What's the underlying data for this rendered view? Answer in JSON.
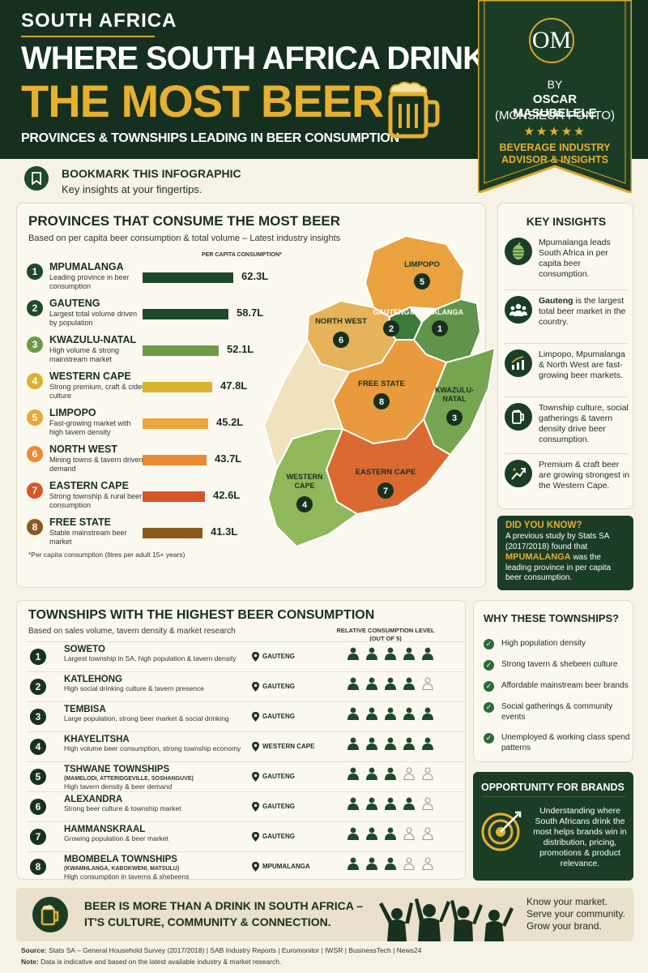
{
  "header": {
    "region": "SOUTH AFRICA",
    "title_line1": "WHERE SOUTH AFRICA DRINKS",
    "title_line2": "THE MOST BEER",
    "subtitle": "PROVINCES & TOWNSHIPS LEADING IN BEER CONSUMPTION",
    "badge": {
      "logo": "OM",
      "by": "BY",
      "author": "OSCAR MASUBELELE",
      "alias": "(MONSIEUR PONTO)",
      "stars": "★★★★★",
      "role_line1": "BEVERAGE INDUSTRY",
      "role_line2": "ADVISOR & INSIGHTS"
    }
  },
  "bookmark": {
    "title": "BOOKMARK THIS INFOGRAPHIC",
    "subtitle": "Key insights at your fingertips."
  },
  "provinces": {
    "title": "PROVINCES THAT CONSUME THE MOST BEER",
    "subtitle": "Based on per capita beer consumption & total volume – Latest industry insights",
    "column_label": "PER CAPITA CONSUMPTION*",
    "footnote": "*Per capita consumption (litres per adult 15+ years)",
    "items": [
      {
        "rank": "1",
        "name": "MPUMALANGA",
        "desc": "Leading province in beer consumption",
        "value": 62.3,
        "label": "62.3L",
        "color": "#1e4a2a"
      },
      {
        "rank": "2",
        "name": "GAUTENG",
        "desc": "Largest total volume driven by population",
        "value": 58.7,
        "label": "58.7L",
        "color": "#1e4a2a"
      },
      {
        "rank": "3",
        "name": "KWAZULU-NATAL",
        "desc": "High volume & strong mainstream market",
        "value": 52.1,
        "label": "52.1L",
        "color": "#6f9a45"
      },
      {
        "rank": "4",
        "name": "WESTERN CAPE",
        "desc": "Strong premium, craft & cider culture",
        "value": 47.8,
        "label": "47.8L",
        "color": "#d9b22f"
      },
      {
        "rank": "5",
        "name": "LIMPOPO",
        "desc": "Fast-growing market with high tavern density",
        "value": 45.2,
        "label": "45.2L",
        "color": "#e9a73c"
      },
      {
        "rank": "6",
        "name": "NORTH WEST",
        "desc": "Mining towns & tavern driven demand",
        "value": 43.7,
        "label": "43.7L",
        "color": "#ea8a34"
      },
      {
        "rank": "7",
        "name": "EASTERN CAPE",
        "desc": "Strong township & rural beer consumption",
        "value": 42.6,
        "label": "42.6L",
        "color": "#d7562a"
      },
      {
        "rank": "8",
        "name": "FREE STATE",
        "desc": "Stable mainstream beer market",
        "value": 41.3,
        "label": "41.3L",
        "color": "#8c5a1e"
      }
    ],
    "map_labels": [
      {
        "name": "LIMPOPO",
        "rank": "5"
      },
      {
        "name": "NORTH WEST",
        "rank": "6"
      },
      {
        "name": "GAUTENG",
        "rank": "2"
      },
      {
        "name": "MPUMALANGA",
        "rank": "1"
      },
      {
        "name": "FREE STATE",
        "rank": "8"
      },
      {
        "name_line1": "KWAZULU-",
        "name_line2": "NATAL",
        "rank": "3"
      },
      {
        "name": "EASTERN CAPE",
        "rank": "7"
      },
      {
        "name_line1": "WESTERN",
        "name_line2": "CAPE",
        "rank": "4"
      }
    ]
  },
  "key_insights": {
    "title": "KEY INSIGHTS",
    "items": [
      {
        "icon": "hops-icon",
        "text": "Mpumalanga leads South Africa in per capita beer consumption."
      },
      {
        "icon": "people-icon",
        "bold": "Gauteng",
        "text": " is the largest total beer market in the country."
      },
      {
        "icon": "growth-chart-icon",
        "text": "Limpopo, Mpumalanga & North West are fast-growing beer markets."
      },
      {
        "icon": "beer-mug-icon",
        "text": "Township culture, social gatherings & tavern density drive beer consumption."
      },
      {
        "icon": "trend-up-icon",
        "text": "Premium & craft beer are growing strongest in the Western Cape."
      }
    ]
  },
  "did_you_know": {
    "title": "DID YOU KNOW?",
    "before": "A previous study by Stats SA (2017/2018) found that",
    "highlight": "MPUMALANGA",
    "after": "was the leading province in per capita beer consumption."
  },
  "townships": {
    "title": "TOWNSHIPS WITH THE HIGHEST BEER CONSUMPTION",
    "subtitle": "Based on sales volume, tavern density & market research",
    "level_label_line1": "RELATIVE CONSUMPTION LEVEL",
    "level_label_line2": "(OUT OF 5)",
    "items": [
      {
        "rank": "1",
        "name": "SOWETO",
        "sub": "",
        "desc": "Largest township in SA, high population & tavern density",
        "province": "GAUTENG",
        "level": 5
      },
      {
        "rank": "2",
        "name": "KATLEHONG",
        "sub": "",
        "desc": "High social drinking culture & tavern presence",
        "province": "GAUTENG",
        "level": 4
      },
      {
        "rank": "3",
        "name": "TEMBISA",
        "sub": "",
        "desc": "Large population, strong beer market & social drinking",
        "province": "GAUTENG",
        "level": 5
      },
      {
        "rank": "4",
        "name": "KHAYELITSHA",
        "sub": "",
        "desc": "High volume beer consumption, strong township economy",
        "province": "WESTERN CAPE",
        "level": 5
      },
      {
        "rank": "5",
        "name": "TSHWANE TOWNSHIPS",
        "sub": "(MAMELODI, ATTERIDGEVILLE, SOSHANGUVE)",
        "desc": "High tavern density & beer demand",
        "province": "GAUTENG",
        "level": 3
      },
      {
        "rank": "6",
        "name": "ALEXANDRA",
        "sub": "",
        "desc": "Strong beer culture & township market",
        "province": "GAUTENG",
        "level": 4
      },
      {
        "rank": "7",
        "name": "HAMMANSKRAAL",
        "sub": "",
        "desc": "Growing population & beer market",
        "province": "GAUTENG",
        "level": 3
      },
      {
        "rank": "8",
        "name": "MBOMBELA TOWNSHIPS",
        "sub": "(KWAMHLANGA, KABOKWENI, MATSULU)",
        "desc": "High consumption in taverns & shebeens",
        "province": "MPUMALANGA",
        "level": 3
      }
    ]
  },
  "why": {
    "title": "WHY THESE TOWNSHIPS?",
    "items": [
      "High population density",
      "Strong tavern & shebeen culture",
      "Affordable mainstream beer brands",
      "Social gatherings & community events",
      "Unemployed & working class spend patterns"
    ]
  },
  "opportunity": {
    "title": "OPPORTUNITY FOR BRANDS",
    "body": "Understanding where South Africans drink the most helps brands win in distribution, pricing, promotions & product relevance."
  },
  "banner": {
    "line1": "BEER IS MORE THAN A DRINK IN SOUTH AFRICA –",
    "line2": "IT'S CULTURE, COMMUNITY & CONNECTION.",
    "right1": "Know your market.",
    "right2": "Serve your community.",
    "right3": "Grow your brand."
  },
  "footer": {
    "source_label": "Source:",
    "source": "Stats SA – General Household Survey (2017/2018) | SAB Industry Reports | Euromonitor | IWSR | BusinessTech | News24",
    "note_label": "Note:",
    "note": "Data is indicative and based on the latest available industry & market research."
  },
  "colors": {
    "dark_green": "#17301f",
    "gold": "#e6b031",
    "cream": "#f6f2e6"
  }
}
